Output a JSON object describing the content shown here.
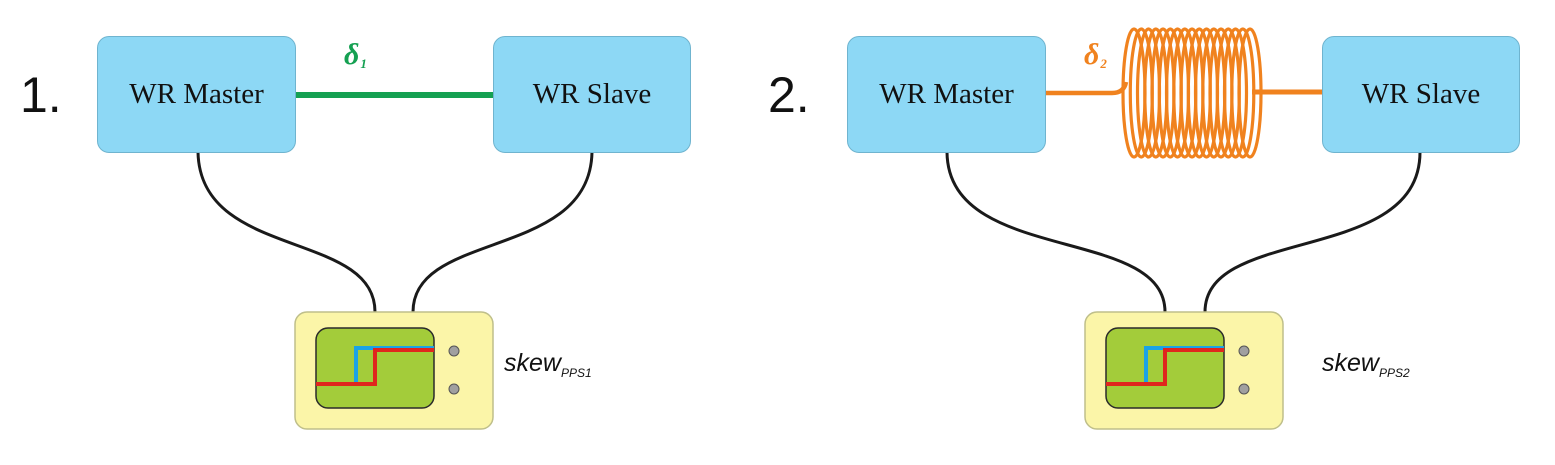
{
  "colors": {
    "box_fill": "#8dd8f5",
    "link_short": "#15a052",
    "link_spool": "#f0821e",
    "scope_body": "#fbf5a8",
    "scope_screen": "#a3cc3a",
    "trace_red": "#e0261d",
    "trace_blue": "#1aa3e6"
  },
  "setups": [
    {
      "number": "1.",
      "master_label": "WR Master",
      "slave_label": "WR Slave",
      "delay_symbol": "δ",
      "delay_subscript": "1",
      "skew_label": "skew",
      "skew_subscript": "PPS1"
    },
    {
      "number": "2.",
      "master_label": "WR Master",
      "slave_label": "WR Slave",
      "delay_symbol": "δ",
      "delay_subscript": "2",
      "skew_label": "skew",
      "skew_subscript": "PPS2"
    }
  ]
}
